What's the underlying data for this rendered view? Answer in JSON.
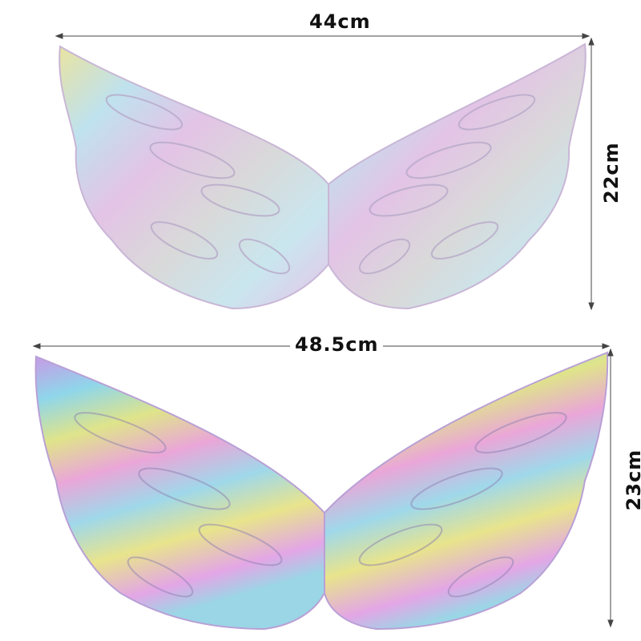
{
  "product_image": {
    "top_wing": {
      "width_label": "44cm",
      "height_label": "22cm",
      "finish": "pastel iridescent silver"
    },
    "bottom_wing": {
      "width_label": "48.5cm",
      "height_label": "23cm",
      "finish": "rainbow metallic"
    }
  },
  "colors": {
    "pink": "#e8a6e6",
    "blue": "#8fd6ea",
    "yellow": "#e6e48a",
    "silver": "#d8d8d8",
    "line": "#444444"
  }
}
